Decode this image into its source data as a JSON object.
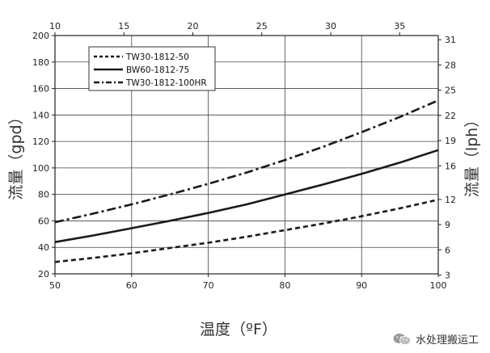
{
  "chart_data": {
    "type": "line",
    "xlabel": "温度（ºF）",
    "ylabel_left": "流量（gpd）",
    "ylabel_right": "流量（lph）",
    "x_bottom": {
      "range": [
        50,
        100
      ],
      "ticks": [
        50,
        60,
        70,
        80,
        90,
        100
      ]
    },
    "x_top": {
      "range": [
        10,
        37.8
      ],
      "ticks": [
        10,
        15,
        20,
        25,
        30,
        35
      ]
    },
    "y_left": {
      "range": [
        20,
        200
      ],
      "ticks": [
        20,
        40,
        60,
        80,
        100,
        120,
        140,
        160,
        180,
        200
      ]
    },
    "y_right": {
      "range": [
        3.15,
        31.5
      ],
      "ticks": [
        3,
        6,
        9,
        12,
        16,
        19,
        22,
        25,
        28,
        31
      ]
    },
    "grid": true,
    "legend_position": "top-left",
    "series": [
      {
        "name": "TW30-1812-50",
        "style": "dashed",
        "color": "#1a1a1a",
        "x": [
          50,
          55,
          60,
          65,
          70,
          75,
          80,
          85,
          90,
          95,
          100
        ],
        "y": [
          29,
          32,
          35.5,
          39.5,
          43.5,
          48,
          53,
          58,
          63.5,
          69.5,
          76
        ]
      },
      {
        "name": "BW60-1812-75",
        "style": "solid",
        "color": "#1a1a1a",
        "x": [
          50,
          55,
          60,
          65,
          70,
          75,
          80,
          85,
          90,
          95,
          100
        ],
        "y": [
          44,
          49,
          54.5,
          60,
          66,
          72.5,
          80,
          87.5,
          95.5,
          104,
          113.5
        ]
      },
      {
        "name": "TW30-1812-100HR",
        "style": "dash-dot",
        "color": "#1a1a1a",
        "x": [
          50,
          55,
          60,
          65,
          70,
          75,
          80,
          85,
          90,
          95,
          100
        ],
        "y": [
          59,
          65.5,
          72.5,
          80,
          88,
          96.5,
          106,
          116,
          127,
          138.5,
          151
        ]
      }
    ]
  },
  "watermark": {
    "text": "水处理搬运工",
    "icon": "wechat-icon"
  }
}
